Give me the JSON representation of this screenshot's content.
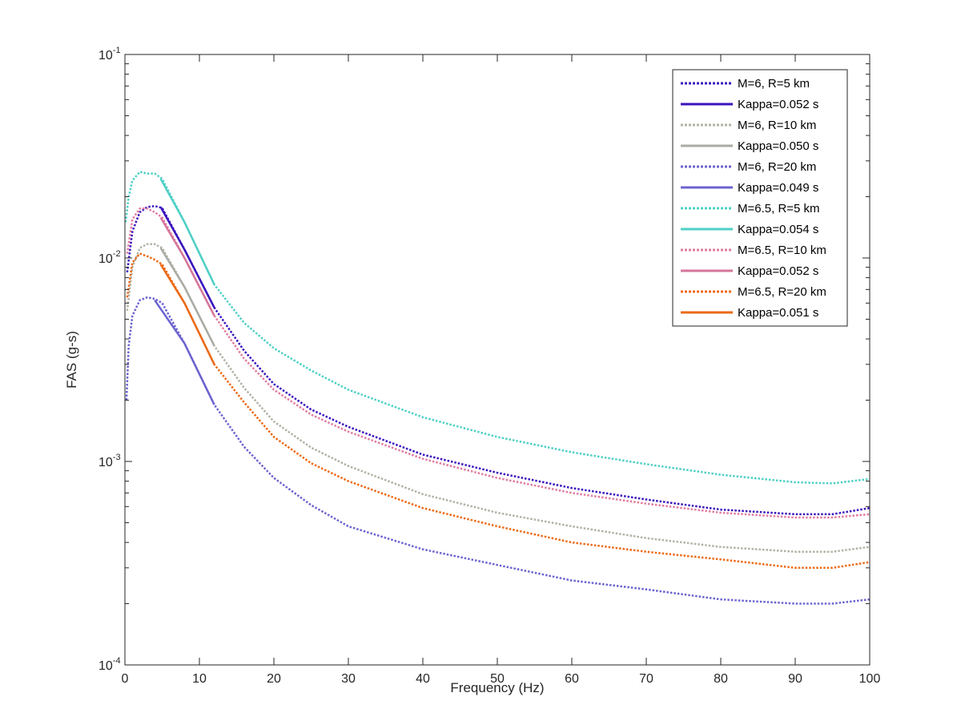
{
  "chart_data": {
    "type": "line",
    "xlabel": "Frequency (Hz)",
    "ylabel": "FAS (g-s)",
    "xlim": [
      0,
      100
    ],
    "ylim": [
      0.0001,
      0.1
    ],
    "yscale": "log",
    "x_ticks": [
      "0",
      "10",
      "20",
      "30",
      "40",
      "50",
      "60",
      "70",
      "80",
      "90",
      "100"
    ],
    "y_ticks": [
      {
        "base": "10",
        "exp": "-4"
      },
      {
        "base": "10",
        "exp": "-3"
      },
      {
        "base": "10",
        "exp": "-2"
      },
      {
        "base": "10",
        "exp": "-1"
      }
    ],
    "grid": false,
    "legend_position": "top-right",
    "series": [
      {
        "name": "M=6, R=5 km",
        "color": "#3a13bd",
        "style": "dotted",
        "x": [
          0.3,
          1,
          2,
          3,
          4,
          5,
          8,
          12,
          16,
          20,
          25,
          30,
          40,
          50,
          60,
          70,
          80,
          90,
          95,
          100
        ],
        "y": [
          0.0085,
          0.0135,
          0.0168,
          0.0178,
          0.018,
          0.0176,
          0.011,
          0.0057,
          0.0035,
          0.0024,
          0.0018,
          0.00148,
          0.00108,
          0.00088,
          0.00074,
          0.00065,
          0.00058,
          0.00055,
          0.00055,
          0.00059
        ]
      },
      {
        "name": "Kappa=0.052 s",
        "color": "#3a13bd",
        "style": "solid",
        "x": [
          4.8,
          8,
          12
        ],
        "y": [
          0.0178,
          0.011,
          0.0057
        ]
      },
      {
        "name": "M=6, R=10 km",
        "color": "#b2b2a5",
        "style": "dotted",
        "x": [
          0.3,
          1,
          2,
          3,
          4,
          5,
          8,
          12,
          16,
          20,
          25,
          30,
          40,
          50,
          60,
          70,
          80,
          90,
          95,
          100
        ],
        "y": [
          0.0055,
          0.009,
          0.0112,
          0.0117,
          0.0117,
          0.0112,
          0.0072,
          0.0037,
          0.0023,
          0.00157,
          0.00117,
          0.00095,
          0.00069,
          0.00056,
          0.00048,
          0.00042,
          0.00038,
          0.00036,
          0.00036,
          0.00038
        ]
      },
      {
        "name": "Kappa=0.050 s",
        "color": "#a9aca3",
        "style": "solid",
        "x": [
          4.8,
          8,
          12
        ],
        "y": [
          0.0112,
          0.0072,
          0.0037
        ]
      },
      {
        "name": "M=6, R=20 km",
        "color": "#6c63cf",
        "style": "dotted",
        "x": [
          0.2,
          0.5,
          1,
          2,
          3,
          4,
          5,
          8,
          12,
          16,
          20,
          25,
          30,
          40,
          50,
          60,
          70,
          80,
          90,
          95,
          100
        ],
        "y": [
          0.002,
          0.0037,
          0.0052,
          0.0062,
          0.0064,
          0.0063,
          0.006,
          0.0038,
          0.0019,
          0.00118,
          0.00083,
          0.00061,
          0.00048,
          0.00037,
          0.00031,
          0.00026,
          0.000235,
          0.00021,
          0.0002,
          0.0002,
          0.00021
        ]
      },
      {
        "name": "Kappa=0.049 s",
        "color": "#6c63cf",
        "style": "solid",
        "x": [
          4,
          8,
          12
        ],
        "y": [
          0.0062,
          0.0038,
          0.0019
        ]
      },
      {
        "name": "M=6.5, R=5 km",
        "color": "#4fd0c6",
        "style": "dotted",
        "x": [
          0.1,
          0.5,
          1,
          2,
          3,
          4,
          5,
          8,
          12,
          16,
          20,
          25,
          30,
          40,
          50,
          60,
          70,
          80,
          90,
          95,
          100
        ],
        "y": [
          0.015,
          0.02,
          0.024,
          0.0265,
          0.026,
          0.026,
          0.0245,
          0.015,
          0.0074,
          0.0048,
          0.0036,
          0.0028,
          0.00225,
          0.00165,
          0.00132,
          0.00111,
          0.00097,
          0.00086,
          0.00079,
          0.00078,
          0.00082
        ]
      },
      {
        "name": "Kappa=0.054 s",
        "color": "#4fd0c6",
        "style": "solid",
        "x": [
          4.8,
          8,
          12
        ],
        "y": [
          0.0245,
          0.015,
          0.0074
        ]
      },
      {
        "name": "M=6.5, R=10 km",
        "color": "#e07ba0",
        "style": "dotted",
        "x": [
          0.3,
          1,
          2,
          3,
          4,
          5,
          8,
          12,
          16,
          20,
          25,
          30,
          40,
          50,
          60,
          70,
          80,
          90,
          95,
          100
        ],
        "y": [
          0.0105,
          0.0155,
          0.0175,
          0.0175,
          0.0168,
          0.0158,
          0.01,
          0.0052,
          0.0032,
          0.00225,
          0.0017,
          0.0014,
          0.00103,
          0.00083,
          0.0007,
          0.00062,
          0.00056,
          0.00053,
          0.00053,
          0.00055
        ]
      },
      {
        "name": "Kappa=0.052 s",
        "color": "#d6759a",
        "style": "solid",
        "x": [
          4.8,
          8,
          12
        ],
        "y": [
          0.0158,
          0.01,
          0.0052
        ]
      },
      {
        "name": "M=6.5, R=20 km",
        "color": "#ec6a17",
        "style": "dotted",
        "x": [
          0.3,
          1,
          2,
          3,
          4,
          5,
          8,
          12,
          16,
          20,
          25,
          30,
          40,
          50,
          60,
          70,
          80,
          90,
          95,
          100
        ],
        "y": [
          0.0064,
          0.0095,
          0.0105,
          0.0102,
          0.0098,
          0.0093,
          0.006,
          0.003,
          0.00195,
          0.00132,
          0.00098,
          0.0008,
          0.00059,
          0.00048,
          0.0004,
          0.00036,
          0.00033,
          0.0003,
          0.0003,
          0.00032
        ]
      },
      {
        "name": "Kappa=0.051 s",
        "color": "#ec6a17",
        "style": "solid",
        "x": [
          4.8,
          8,
          12
        ],
        "y": [
          0.0093,
          0.006,
          0.003
        ]
      }
    ]
  }
}
